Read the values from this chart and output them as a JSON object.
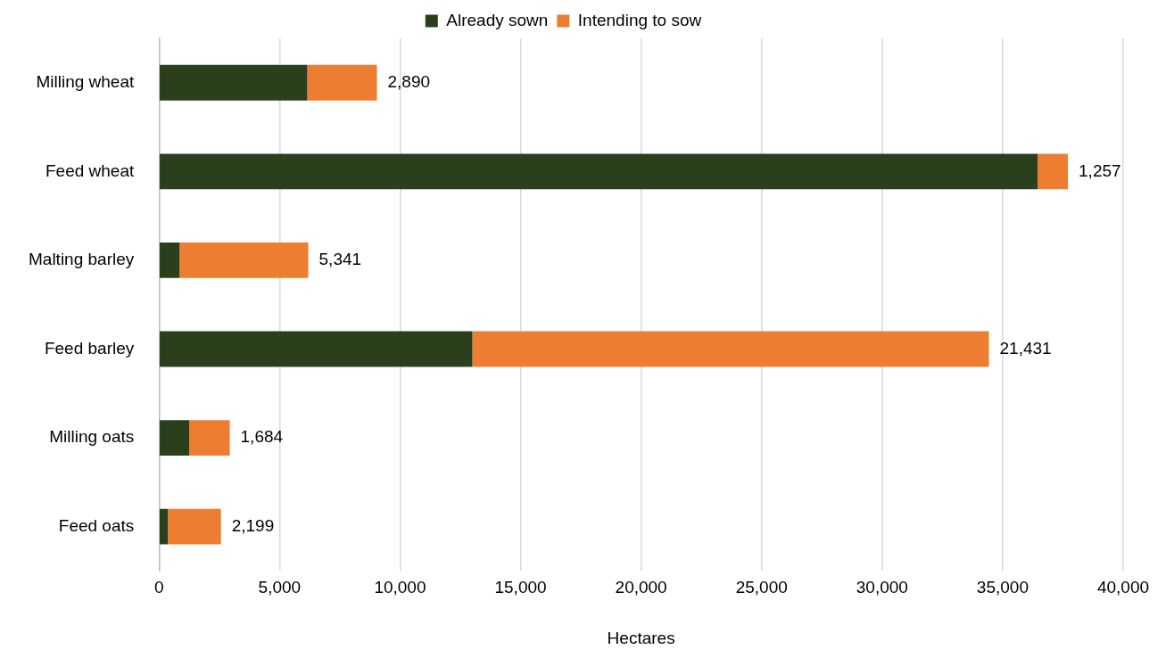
{
  "chart_data": {
    "type": "bar",
    "orientation": "horizontal",
    "stacked": true,
    "xlabel": "Hectares",
    "categories": [
      "Milling wheat",
      "Feed wheat",
      "Malting barley",
      "Feed barley",
      "Milling oats",
      "Feed oats"
    ],
    "series": [
      {
        "name": "Already sown",
        "color": "#2a3f1b",
        "values": [
          6150,
          36450,
          850,
          13000,
          1250,
          370
        ]
      },
      {
        "name": "Intending to sow",
        "color": "#ed7d31",
        "values": [
          2890,
          1257,
          5341,
          21431,
          1684,
          2199
        ],
        "value_labels": [
          "2,890",
          "1,257",
          "5,341",
          "21,431",
          "1,684",
          "2,199"
        ]
      }
    ],
    "xlim": [
      0,
      40000
    ],
    "xticks": [
      {
        "value": 0,
        "label": "0"
      },
      {
        "value": 5000,
        "label": "5,000"
      },
      {
        "value": 10000,
        "label": "10,000"
      },
      {
        "value": 15000,
        "label": "15,000"
      },
      {
        "value": 20000,
        "label": "20,000"
      },
      {
        "value": 25000,
        "label": "25,000"
      },
      {
        "value": 30000,
        "label": "30,000"
      },
      {
        "value": 35000,
        "label": "35,000"
      },
      {
        "value": 40000,
        "label": "40,000"
      }
    ],
    "grid": "x",
    "legend": "top"
  }
}
